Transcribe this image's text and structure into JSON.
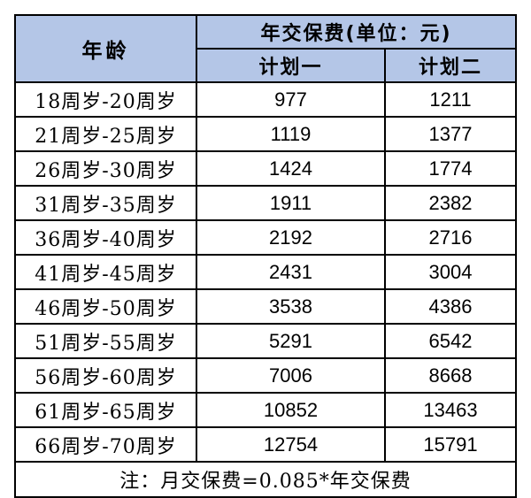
{
  "table": {
    "header": {
      "age_label": "年龄",
      "group_label": "年交保费(单位：元)",
      "plan1_label": "计划一",
      "plan2_label": "计划二"
    },
    "rows": [
      {
        "age": "18周岁-20周岁",
        "plan1": "977",
        "plan2": "1211"
      },
      {
        "age": "21周岁-25周岁",
        "plan1": "1119",
        "plan2": "1377"
      },
      {
        "age": "26周岁-30周岁",
        "plan1": "1424",
        "plan2": "1774"
      },
      {
        "age": "31周岁-35周岁",
        "plan1": "1911",
        "plan2": "2382"
      },
      {
        "age": "36周岁-40周岁",
        "plan1": "2192",
        "plan2": "2716"
      },
      {
        "age": "41周岁-45周岁",
        "plan1": "2431",
        "plan2": "3004"
      },
      {
        "age": "46周岁-50周岁",
        "plan1": "3538",
        "plan2": "4386"
      },
      {
        "age": "51周岁-55周岁",
        "plan1": "5291",
        "plan2": "6542"
      },
      {
        "age": "56周岁-60周岁",
        "plan1": "7006",
        "plan2": "8668"
      },
      {
        "age": "61周岁-65周岁",
        "plan1": "10852",
        "plan2": "13463"
      },
      {
        "age": "66周岁-70周岁",
        "plan1": "12754",
        "plan2": "15791"
      }
    ],
    "note": "注：月交保费=0.085*年交保费"
  },
  "colors": {
    "header_bg": "#b4c6e7",
    "border": "#000000"
  }
}
